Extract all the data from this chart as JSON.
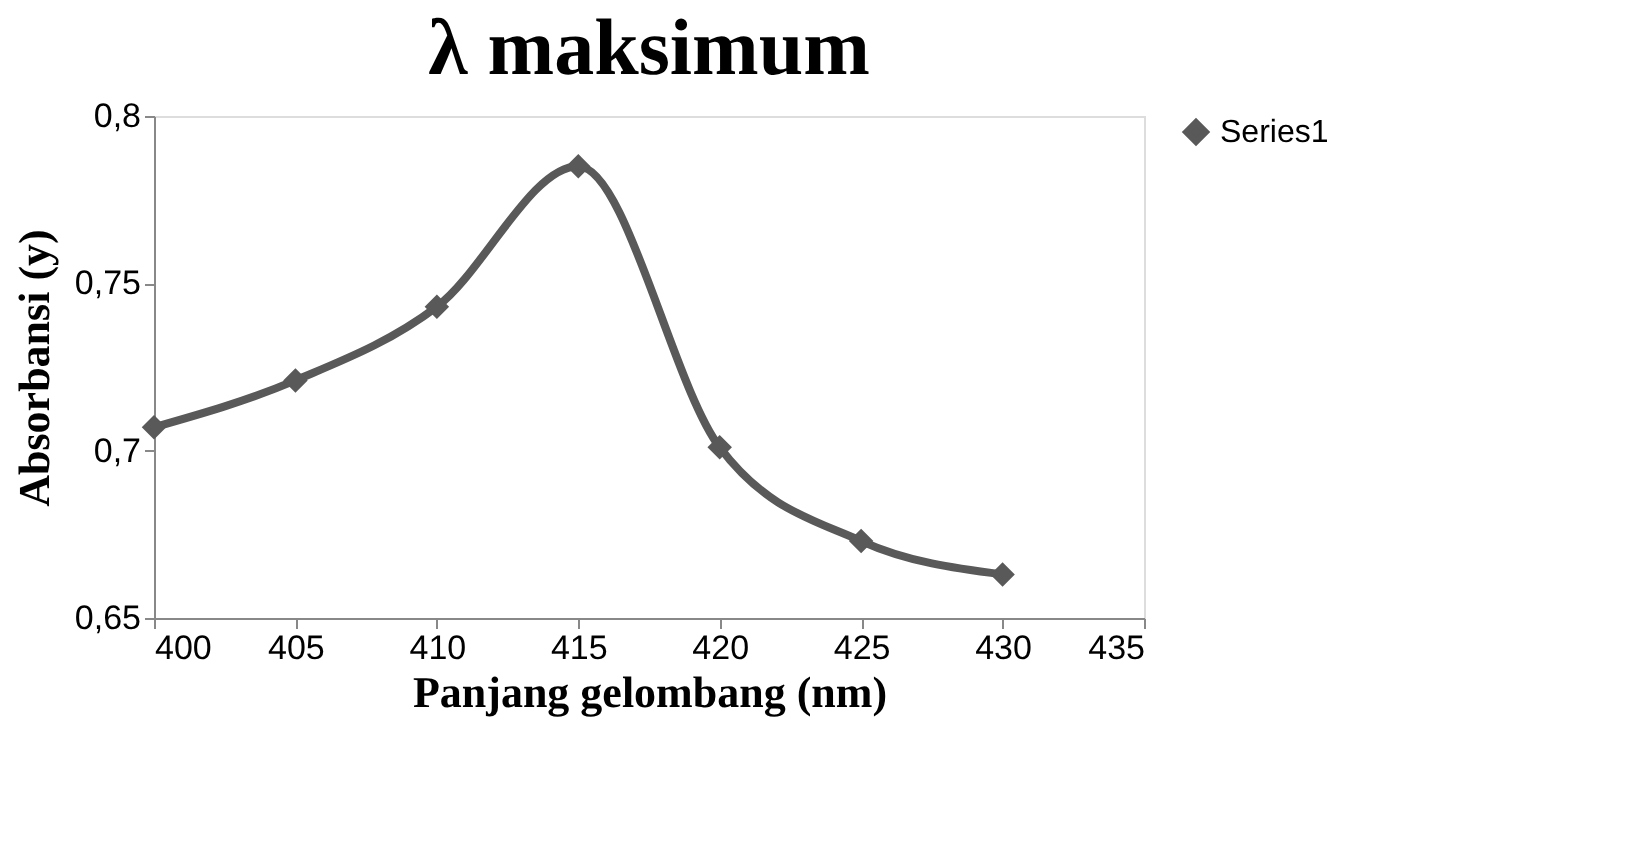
{
  "chart_data": {
    "type": "line",
    "title": "λ maksimum",
    "xlabel": "Panjang gelombang (nm)",
    "ylabel": "Absorbansi (y)",
    "x": [
      400,
      405,
      410,
      415,
      420,
      425,
      430
    ],
    "series": [
      {
        "name": "Series1",
        "color": "#595959",
        "values": [
          0.707,
          0.721,
          0.743,
          0.785,
          0.701,
          0.673,
          0.663
        ]
      }
    ],
    "xlim": [
      400,
      435
    ],
    "xticks": [
      400,
      405,
      410,
      415,
      420,
      425,
      430,
      435
    ],
    "ylim": [
      0.65,
      0.8
    ],
    "yticks": [
      {
        "value": 0.65,
        "label": "0,65"
      },
      {
        "value": 0.7,
        "label": "0,7"
      },
      {
        "value": 0.75,
        "label": "0,75"
      },
      {
        "value": 0.8,
        "label": "0,8"
      }
    ],
    "marker": "diamond",
    "line_style": "solid",
    "grid": false,
    "legend": "right"
  }
}
